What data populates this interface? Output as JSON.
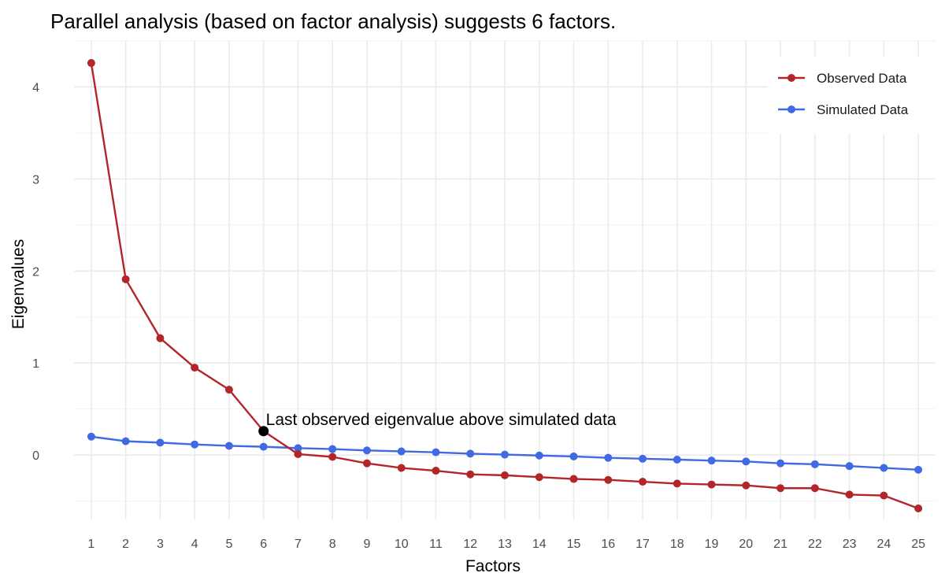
{
  "chart_data": {
    "type": "line",
    "title": "Parallel analysis (based on factor analysis) suggests 6 factors.",
    "xlabel": "Factors",
    "ylabel": "Eigenvalues",
    "x": [
      1,
      2,
      3,
      4,
      5,
      6,
      7,
      8,
      9,
      10,
      11,
      12,
      13,
      14,
      15,
      16,
      17,
      18,
      19,
      20,
      21,
      22,
      23,
      24,
      25
    ],
    "xlim": [
      0.5,
      25.5
    ],
    "ylim": [
      -0.7,
      4.5
    ],
    "y_ticks": [
      0,
      1,
      2,
      3,
      4
    ],
    "grid": true,
    "legend_position": "top-right",
    "series": [
      {
        "name": "Observed Data",
        "color": "#b2262a",
        "values": [
          4.26,
          1.91,
          1.27,
          0.95,
          0.71,
          0.26,
          0.01,
          -0.02,
          -0.09,
          -0.14,
          -0.17,
          -0.21,
          -0.22,
          -0.24,
          -0.26,
          -0.27,
          -0.29,
          -0.31,
          -0.32,
          -0.33,
          -0.36,
          -0.36,
          -0.43,
          -0.44,
          -0.58
        ]
      },
      {
        "name": "Simulated Data",
        "color": "#4169e1",
        "values": [
          0.2,
          0.15,
          0.135,
          0.115,
          0.1,
          0.09,
          0.075,
          0.065,
          0.05,
          0.04,
          0.03,
          0.015,
          0.005,
          -0.005,
          -0.015,
          -0.03,
          -0.04,
          -0.05,
          -0.06,
          -0.07,
          -0.09,
          -0.1,
          -0.12,
          -0.14,
          -0.16
        ]
      }
    ],
    "annotation": {
      "text": "Last observed eigenvalue above simulated data",
      "x": 6,
      "y": 0.26,
      "marker_color": "#000000"
    }
  }
}
